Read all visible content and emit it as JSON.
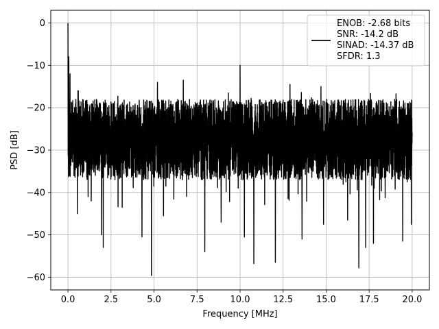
{
  "chart_data": {
    "type": "line",
    "title": "",
    "xlabel": "Frequency [MHz]",
    "ylabel": "PSD [dB]",
    "xlim": [
      -1.0,
      21.0
    ],
    "ylim": [
      -63.0,
      3.0
    ],
    "xticks": [
      0.0,
      2.5,
      5.0,
      7.5,
      10.0,
      12.5,
      15.0,
      17.5,
      20.0
    ],
    "xtick_labels": [
      "0.0",
      "2.5",
      "5.0",
      "7.5",
      "10.0",
      "12.5",
      "15.0",
      "17.5",
      "20.0"
    ],
    "yticks": [
      0,
      -10,
      -20,
      -30,
      -40,
      -50,
      -60
    ],
    "ytick_labels": [
      "0",
      "−10",
      "−20",
      "−30",
      "−40",
      "−50",
      "−60"
    ],
    "grid": true,
    "legend_position": "top-right",
    "legend_lines": [
      "ENOB: -2.68 bits",
      "SNR: -14.2 dB",
      "SINAD: -14.37 dB",
      "SFDR: 1.3"
    ],
    "series": [
      {
        "color": "#000000",
        "x_range": [
          0.0,
          20.0
        ],
        "noise_floor_center_db": -27,
        "noise_floor_upper_db": -18,
        "noise_floor_lower_db": -37,
        "peaks": [
          {
            "x": 0.0,
            "y": 0.0
          },
          {
            "x": 0.05,
            "y": -8.0
          },
          {
            "x": 0.12,
            "y": -12.0
          },
          {
            "x": 0.6,
            "y": -16.0
          },
          {
            "x": 10.0,
            "y": -10.0
          },
          {
            "x": 5.2,
            "y": -14.0
          },
          {
            "x": 6.7,
            "y": -13.5
          },
          {
            "x": 12.9,
            "y": -14.5
          },
          {
            "x": 14.7,
            "y": -15.0
          }
        ],
        "dips": [
          {
            "x": 1.95,
            "y": -50.0
          },
          {
            "x": 2.05,
            "y": -53.0
          },
          {
            "x": 4.3,
            "y": -50.5
          },
          {
            "x": 4.85,
            "y": -59.6
          },
          {
            "x": 7.95,
            "y": -54.0
          },
          {
            "x": 10.25,
            "y": -50.5
          },
          {
            "x": 10.8,
            "y": -56.8
          },
          {
            "x": 12.05,
            "y": -56.5
          },
          {
            "x": 13.6,
            "y": -51.0
          },
          {
            "x": 16.9,
            "y": -57.8
          },
          {
            "x": 17.3,
            "y": -53.0
          },
          {
            "x": 17.75,
            "y": -52.0
          },
          {
            "x": 19.45,
            "y": -51.5
          },
          {
            "x": 0.55,
            "y": -45.0
          },
          {
            "x": 1.35,
            "y": -42.0
          },
          {
            "x": 3.15,
            "y": -43.5
          },
          {
            "x": 5.55,
            "y": -45.5
          },
          {
            "x": 8.9,
            "y": -47.0
          },
          {
            "x": 14.85,
            "y": -47.5
          },
          {
            "x": 16.25,
            "y": -46.5
          },
          {
            "x": 19.95,
            "y": -47.5
          }
        ]
      }
    ]
  }
}
